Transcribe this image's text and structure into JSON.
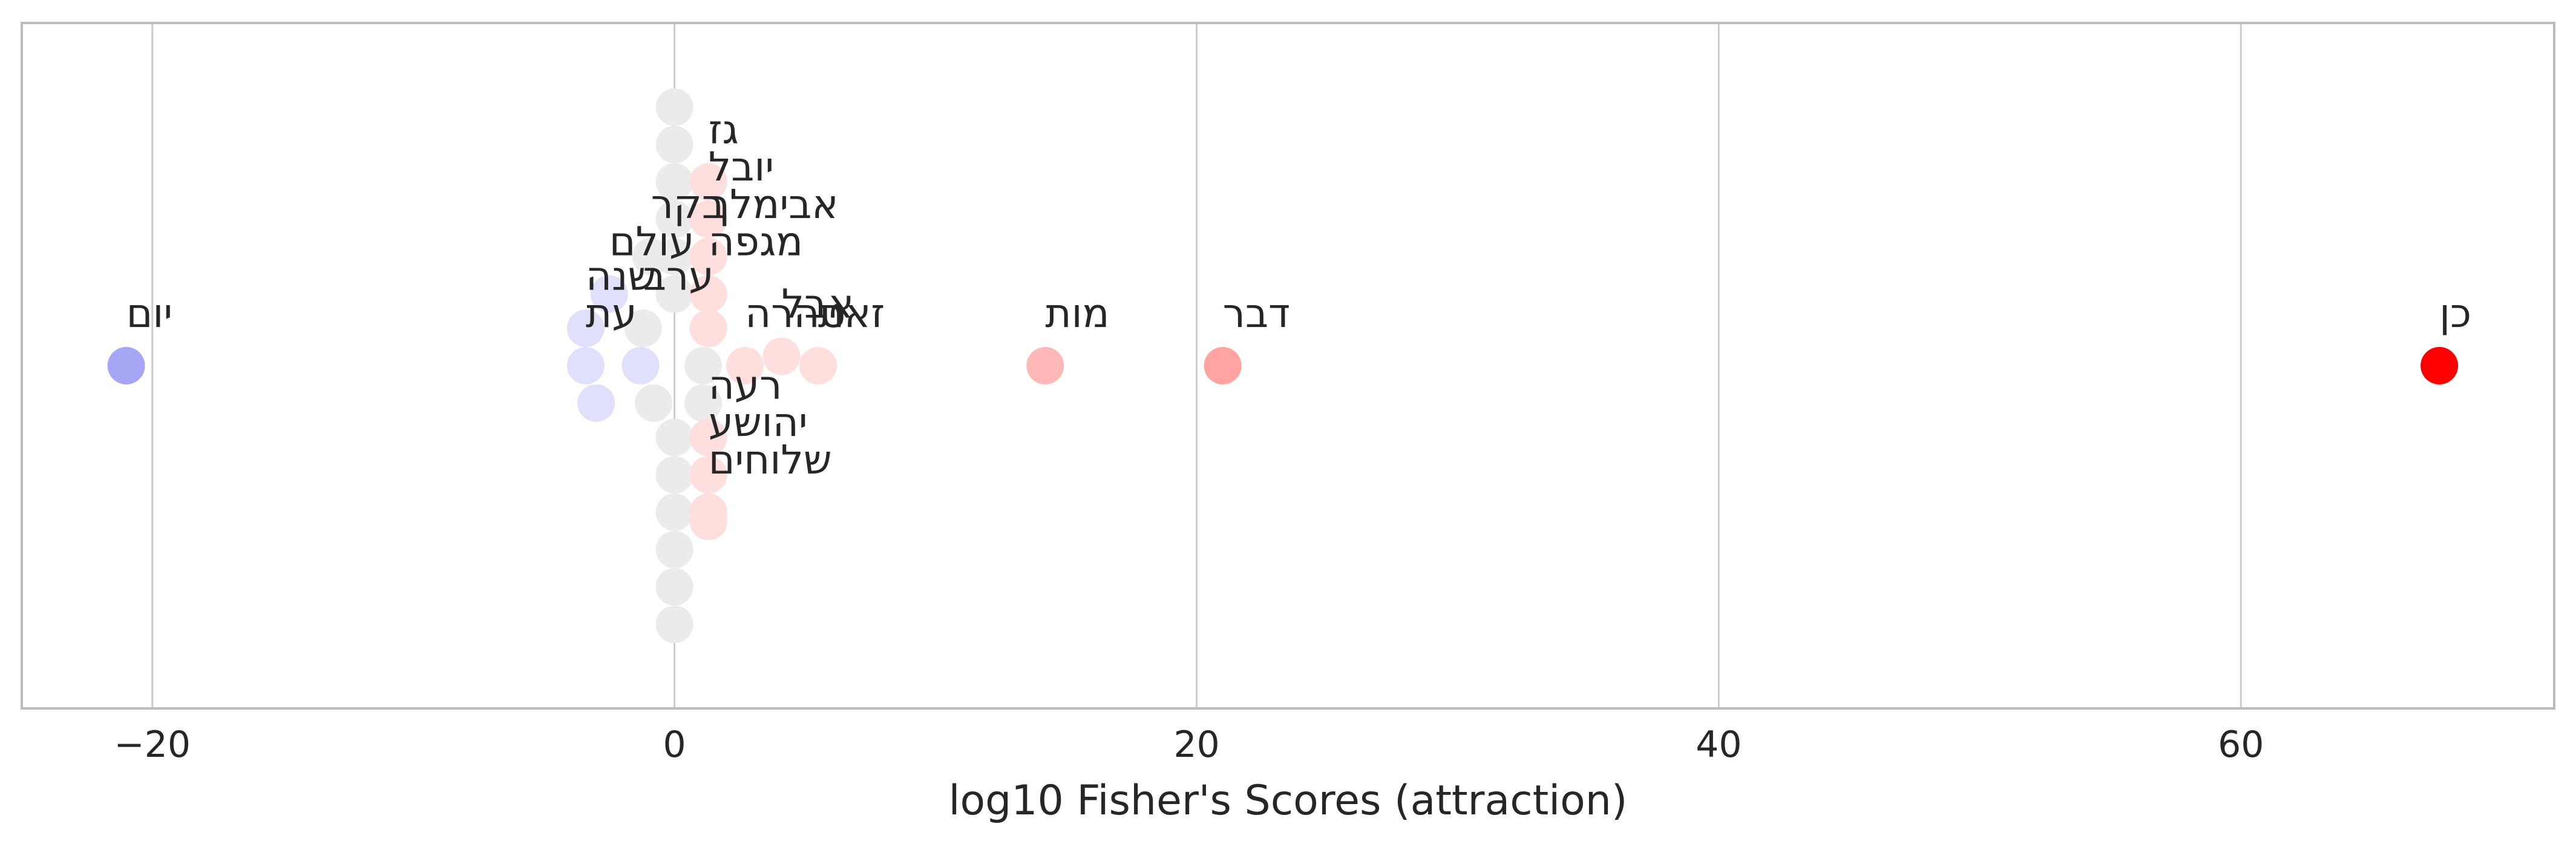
{
  "chart_data": {
    "type": "scatter",
    "title": "",
    "xlabel": "log10 Fisher's Scores (attraction)",
    "ylabel": "",
    "xlim": [
      -25,
      72
    ],
    "ylim": [
      -11,
      11
    ],
    "xticks": [
      -20,
      0,
      20,
      40,
      60
    ],
    "tick_labels": [
      "−20",
      "0",
      "20",
      "40",
      "60"
    ],
    "grid": "vertical",
    "legend": "none",
    "colors": {
      "strong_attraction": "#ff0000",
      "attraction": "#ffa3a3",
      "weak_attraction": "#ffdede",
      "neutral": "#ebebeb",
      "weak_repulsion": "#e0e0fc",
      "repulsion": "#a6a6f5",
      "grid": "#cccccc",
      "frame": "#bdbdbd"
    },
    "points": [
      {
        "x": -21,
        "y": 0,
        "color": "#a6a6f5",
        "label": "יום"
      },
      {
        "x": -3.4,
        "y": 1.2,
        "color": "#e0e0fc",
        "label": "שנה"
      },
      {
        "x": -3.4,
        "y": 0,
        "color": "#e0e0fc",
        "label": "עת"
      },
      {
        "x": -3.0,
        "y": -1.2,
        "color": "#e0e0fc",
        "label": ""
      },
      {
        "x": -2.5,
        "y": 2.3,
        "color": "#e0e0fc",
        "label": "עולם"
      },
      {
        "x": -1.3,
        "y": 0,
        "color": "#e0e0fc",
        "label": ""
      },
      {
        "x": -1.2,
        "y": 1.2,
        "color": "#ebebeb",
        "label": "ערב"
      },
      {
        "x": -0.8,
        "y": -1.2,
        "color": "#ebebeb",
        "label": ""
      },
      {
        "x": 0,
        "y": 8.3,
        "color": "#ebebeb",
        "label": ""
      },
      {
        "x": 0,
        "y": 7.1,
        "color": "#ebebeb",
        "label": ""
      },
      {
        "x": 0,
        "y": 5.9,
        "color": "#ebebeb",
        "label": ""
      },
      {
        "x": 0,
        "y": 4.7,
        "color": "#ebebeb",
        "label": ""
      },
      {
        "x": 0,
        "y": 3.5,
        "color": "#ebebeb",
        "label": ""
      },
      {
        "x": -0.9,
        "y": 3.5,
        "color": "#ebebeb",
        "label": "בקר"
      },
      {
        "x": 0,
        "y": 2.3,
        "color": "#ebebeb",
        "label": ""
      },
      {
        "x": 0,
        "y": -2.3,
        "color": "#ebebeb",
        "label": ""
      },
      {
        "x": 0,
        "y": -3.5,
        "color": "#ebebeb",
        "label": ""
      },
      {
        "x": 0,
        "y": -4.7,
        "color": "#ebebeb",
        "label": ""
      },
      {
        "x": 0,
        "y": -5.9,
        "color": "#ebebeb",
        "label": ""
      },
      {
        "x": 0,
        "y": -7.1,
        "color": "#ebebeb",
        "label": ""
      },
      {
        "x": 0,
        "y": -8.3,
        "color": "#ebebeb",
        "label": ""
      },
      {
        "x": 1.1,
        "y": 0,
        "color": "#ebebeb",
        "label": ""
      },
      {
        "x": 1.1,
        "y": -1.2,
        "color": "#ebebeb",
        "label": ""
      },
      {
        "x": 1.3,
        "y": 5.9,
        "color": "#ffdede",
        "label": "גז"
      },
      {
        "x": 1.3,
        "y": 4.7,
        "color": "#ffdede",
        "label": "יובל"
      },
      {
        "x": 1.3,
        "y": 3.5,
        "color": "#ffdede",
        "label": "אבימלך"
      },
      {
        "x": 1.3,
        "y": 2.3,
        "color": "#ffdede",
        "label": "מגפה"
      },
      {
        "x": 1.3,
        "y": -2.3,
        "color": "#ffdede",
        "label": "רעה"
      },
      {
        "x": 1.3,
        "y": -3.5,
        "color": "#ffdede",
        "label": "יהושע"
      },
      {
        "x": 1.3,
        "y": -4.7,
        "color": "#ffdede",
        "label": "שלוחים"
      },
      {
        "x": 1.3,
        "y": 1.2,
        "color": "#ffdede",
        "label": ""
      },
      {
        "x": 1.3,
        "y": -5.0,
        "color": "#ffdede",
        "label": ""
      },
      {
        "x": 2.7,
        "y": 0,
        "color": "#ffdede",
        "label": "טהרה"
      },
      {
        "x": 4.1,
        "y": 0.3,
        "color": "#ffdede",
        "label": "אבל"
      },
      {
        "x": 5.5,
        "y": 0,
        "color": "#ffdede",
        "label": "זאת"
      },
      {
        "x": 14.2,
        "y": 0,
        "color": "#ffb8b8",
        "label": "מות"
      },
      {
        "x": 21.0,
        "y": 0,
        "color": "#ffa3a3",
        "label": "דבר"
      },
      {
        "x": 67.6,
        "y": 0,
        "color": "#ff0000",
        "label": "כן"
      }
    ]
  }
}
